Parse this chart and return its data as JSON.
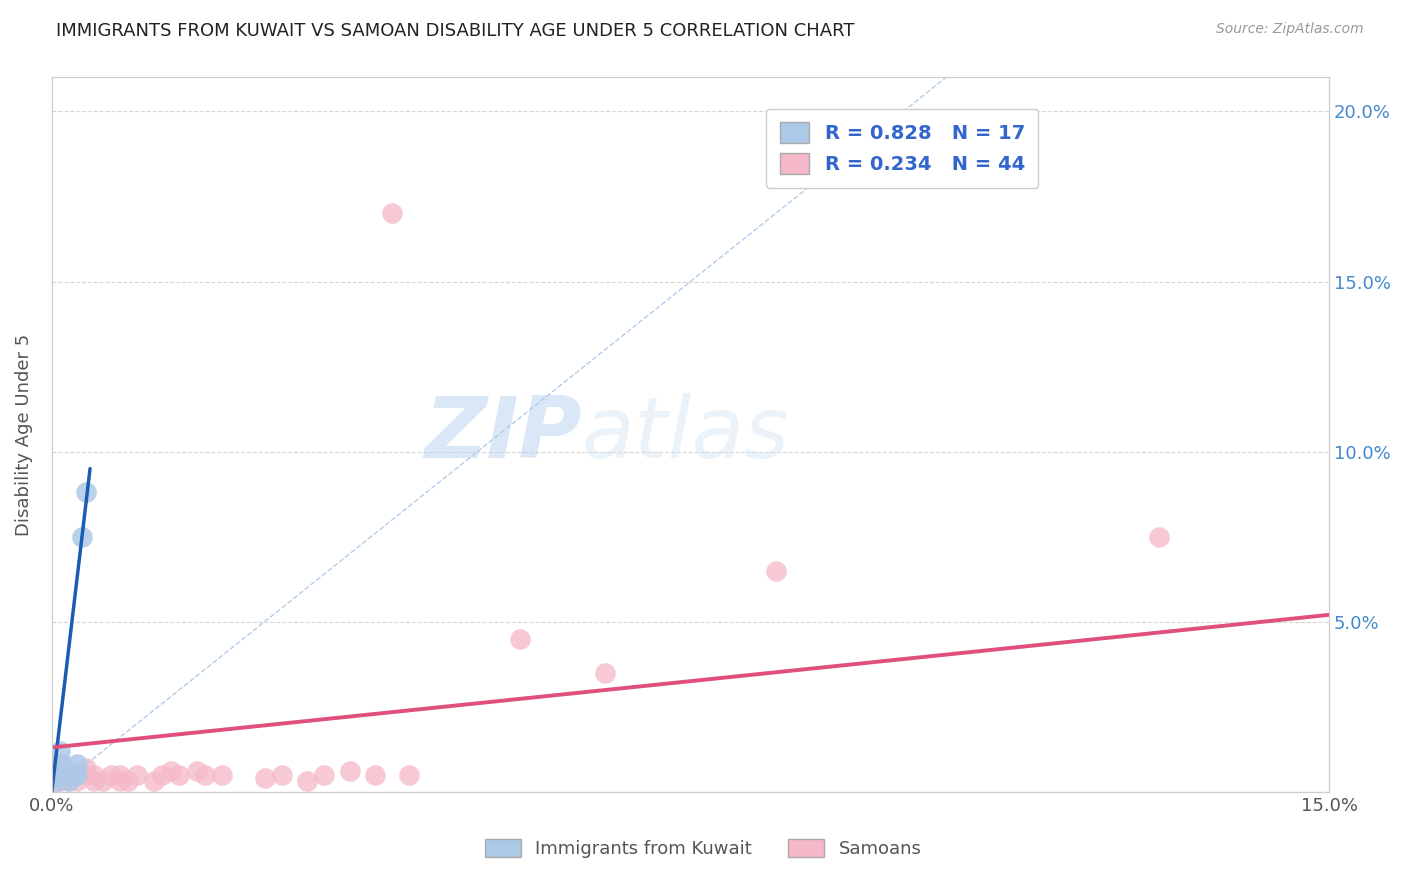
{
  "title": "IMMIGRANTS FROM KUWAIT VS SAMOAN DISABILITY AGE UNDER 5 CORRELATION CHART",
  "source": "Source: ZipAtlas.com",
  "ylabel": "Disability Age Under 5",
  "x_min": 0.0,
  "x_max": 0.15,
  "y_min": 0.0,
  "y_max": 0.21,
  "y_ticks": [
    0.0,
    0.05,
    0.1,
    0.15,
    0.2
  ],
  "y_right_labels": [
    "",
    "5.0%",
    "10.0%",
    "15.0%",
    "20.0%"
  ],
  "kuwait_R": 0.828,
  "kuwait_N": 17,
  "samoan_R": 0.234,
  "samoan_N": 44,
  "kuwait_color": "#adc9e8",
  "samoan_color": "#f5b8c8",
  "kuwait_line_color": "#1a5cb0",
  "samoan_line_color": "#e0507a",
  "dash_line_color": "#aac8e8",
  "kuwait_trend_x": [
    0.0,
    0.0045
  ],
  "kuwait_trend_y": [
    0.0,
    0.095
  ],
  "samoan_trend_x": [
    0.0,
    0.15
  ],
  "samoan_trend_y": [
    0.013,
    0.052
  ],
  "kuwait_points_x": [
    0.0003,
    0.0005,
    0.0006,
    0.0008,
    0.001,
    0.001,
    0.0012,
    0.0012,
    0.0015,
    0.002,
    0.002,
    0.0022,
    0.0025,
    0.003,
    0.003,
    0.0035,
    0.004
  ],
  "kuwait_points_y": [
    0.005,
    0.008,
    0.003,
    0.005,
    0.005,
    0.012,
    0.005,
    0.008,
    0.005,
    0.003,
    0.005,
    0.005,
    0.005,
    0.008,
    0.005,
    0.075,
    0.088
  ],
  "samoan_points_x": [
    0.0,
    0.0,
    0.0,
    0.0003,
    0.0005,
    0.0007,
    0.001,
    0.001,
    0.0012,
    0.0015,
    0.002,
    0.002,
    0.0022,
    0.003,
    0.003,
    0.004,
    0.004,
    0.005,
    0.005,
    0.006,
    0.007,
    0.008,
    0.008,
    0.009,
    0.01,
    0.012,
    0.013,
    0.014,
    0.015,
    0.017,
    0.018,
    0.02,
    0.025,
    0.027,
    0.03,
    0.032,
    0.035,
    0.038,
    0.04,
    0.042,
    0.055,
    0.065,
    0.085,
    0.13
  ],
  "samoan_points_y": [
    0.005,
    0.003,
    0.007,
    0.003,
    0.005,
    0.003,
    0.003,
    0.008,
    0.005,
    0.005,
    0.003,
    0.005,
    0.006,
    0.003,
    0.005,
    0.005,
    0.007,
    0.003,
    0.005,
    0.003,
    0.005,
    0.003,
    0.005,
    0.003,
    0.005,
    0.003,
    0.005,
    0.006,
    0.005,
    0.006,
    0.005,
    0.005,
    0.004,
    0.005,
    0.003,
    0.005,
    0.006,
    0.005,
    0.17,
    0.005,
    0.045,
    0.035,
    0.065,
    0.075
  ],
  "watermark_zip": "ZIP",
  "watermark_atlas": "atlas",
  "background_color": "#ffffff",
  "grid_color": "#cccccc",
  "title_fontsize": 13,
  "axis_fontsize": 13,
  "right_tick_color": "#4488cc"
}
